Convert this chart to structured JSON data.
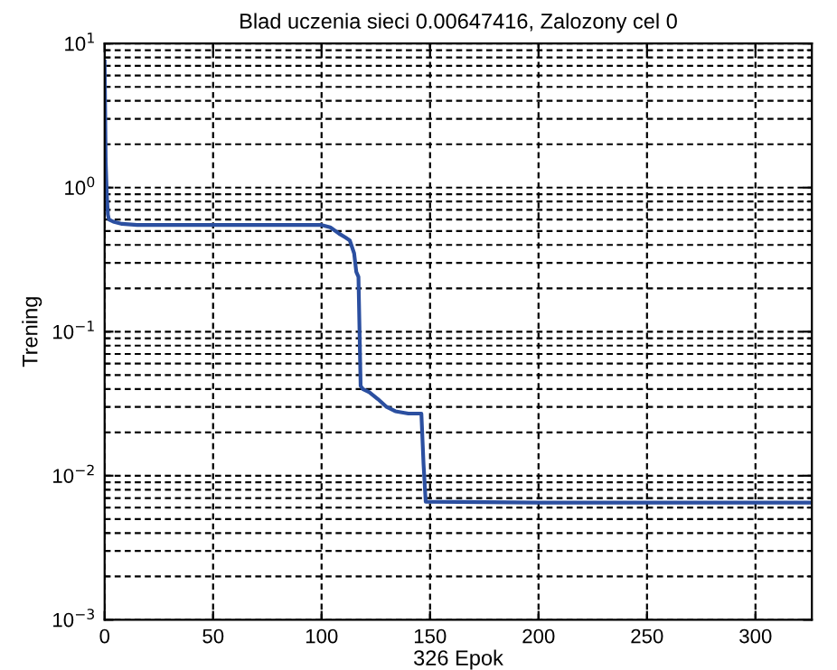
{
  "chart_data": {
    "type": "line",
    "title": "Blad uczenia sieci 0.00647416, Zalozony cel 0",
    "xlabel": "326 Epok",
    "ylabel": "Trening",
    "log": "y",
    "grid": true,
    "line_style": "solid",
    "marker": "none",
    "xlim": [
      0,
      326
    ],
    "xticks": [
      0,
      50,
      100,
      150,
      200,
      250,
      300
    ],
    "ylim": [
      0.001,
      10
    ],
    "yticks": [
      {
        "value": 0.001,
        "label": "10$^{−3}$"
      },
      {
        "value": 0.01,
        "label": "10$^{−2}$"
      },
      {
        "value": 0.1,
        "label": "10$^{−1}$"
      },
      {
        "value": 1,
        "label": "10$^{0}$"
      },
      {
        "value": 10,
        "label": "10$^{1}$"
      }
    ],
    "series": [
      {
        "color": "#2b4fa0",
        "x": [
          0,
          0.5,
          1,
          1.5,
          2,
          4,
          8,
          15,
          40,
          70,
          100,
          104,
          108,
          111,
          113,
          115,
          116,
          117,
          118,
          119,
          122,
          126,
          130,
          134,
          140,
          146,
          147,
          148,
          200,
          260,
          326
        ],
        "values": [
          7.5,
          1.5,
          0.9,
          0.65,
          0.6,
          0.58,
          0.56,
          0.55,
          0.55,
          0.55,
          0.55,
          0.53,
          0.48,
          0.45,
          0.43,
          0.35,
          0.26,
          0.24,
          0.042,
          0.04,
          0.038,
          0.034,
          0.03,
          0.028,
          0.027,
          0.027,
          0.012,
          0.0066,
          0.0065,
          0.0065,
          0.0065
        ]
      }
    ]
  }
}
